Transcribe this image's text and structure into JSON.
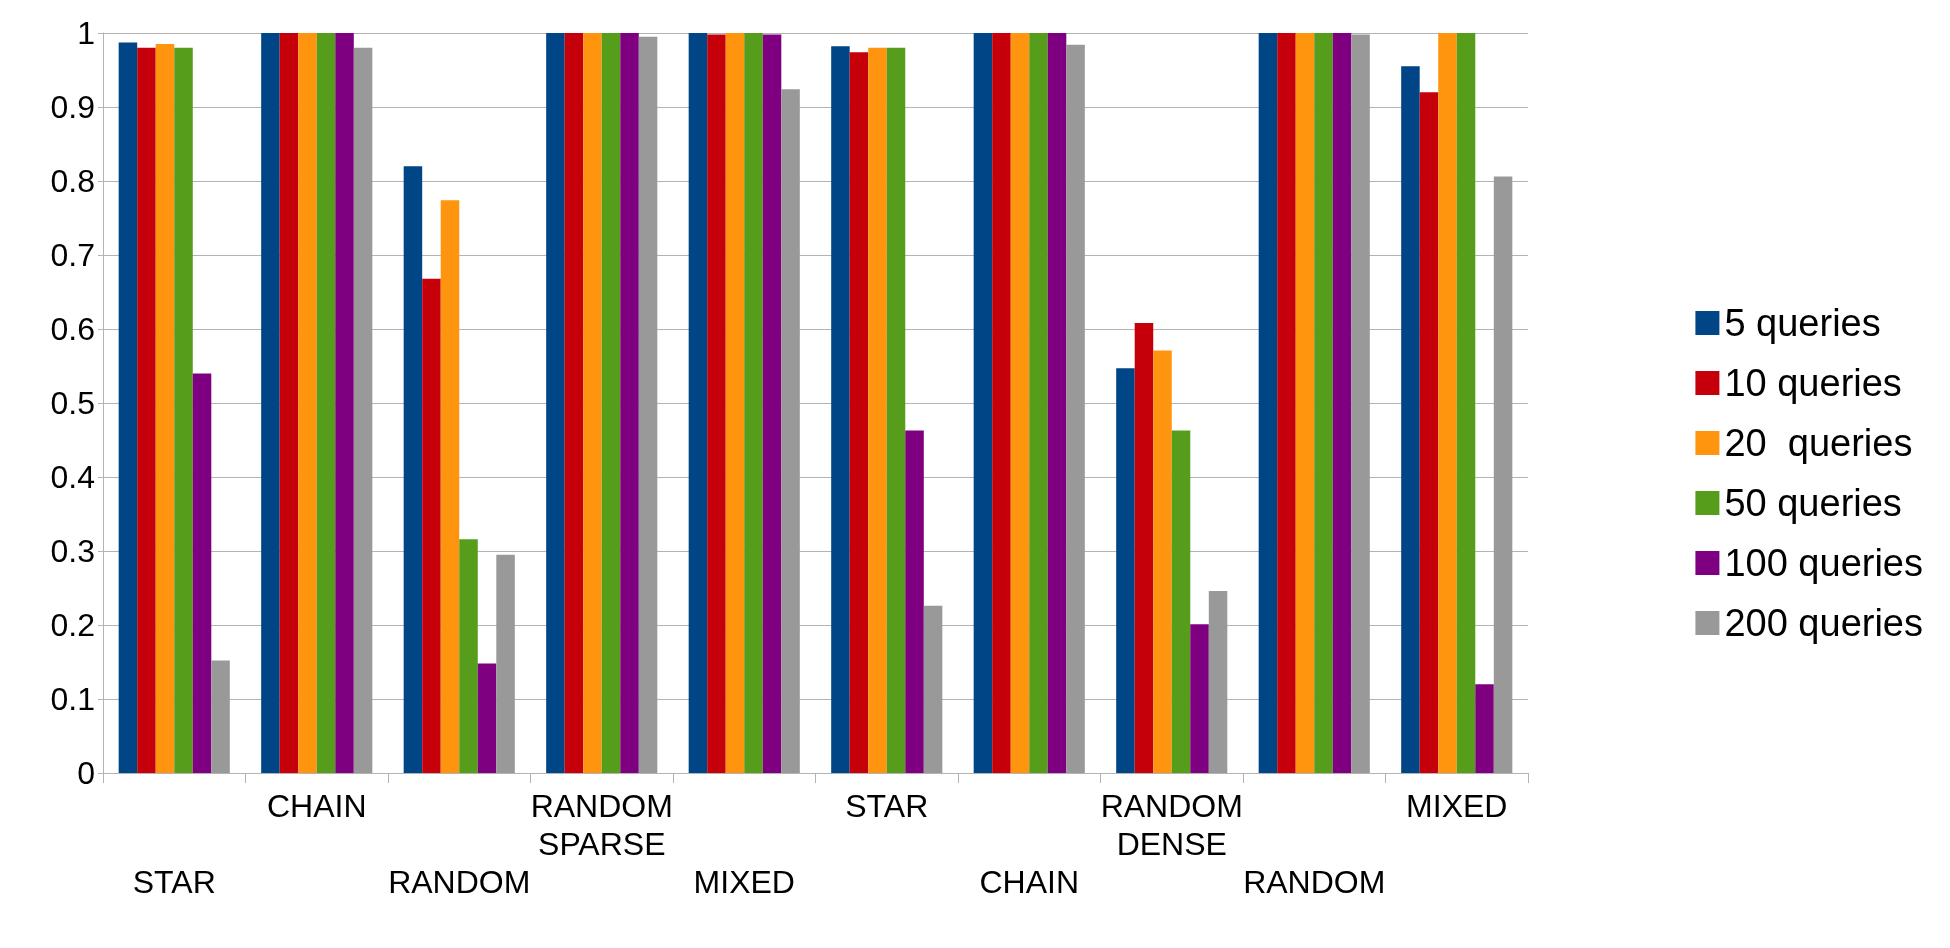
{
  "chart_data": {
    "type": "bar",
    "categories": [
      "STAR",
      "CHAIN",
      "RANDOM",
      "RANDOM SPARSE",
      "MIXED",
      "STAR",
      "CHAIN",
      "RANDOM DENSE",
      "RANDOM",
      "MIXED"
    ],
    "series": [
      {
        "name": "5 queries",
        "color": "#004586",
        "values": [
          0.987,
          1,
          0.82,
          1,
          1,
          0.982,
          1,
          0.547,
          1,
          0.955
        ]
      },
      {
        "name": "10 queries",
        "color": "#c5000b",
        "values": [
          0.98,
          1,
          0.668,
          1,
          0.998,
          0.974,
          1,
          0.608,
          1,
          0.92
        ]
      },
      {
        "name": "20  queries",
        "color": "#ff950e",
        "values": [
          0.985,
          1,
          0.774,
          1,
          1,
          0.98,
          1,
          0.571,
          1,
          1
        ]
      },
      {
        "name": "50 queries",
        "color": "#579d1c",
        "values": [
          0.98,
          1,
          0.316,
          1,
          1,
          0.98,
          1,
          0.463,
          1,
          1
        ]
      },
      {
        "name": "100 queries",
        "color": "#7e0081",
        "values": [
          0.54,
          1,
          0.148,
          1,
          0.998,
          0.463,
          1,
          0.201,
          1,
          0.12
        ]
      },
      {
        "name": "200 queries",
        "color": "#999999",
        "values": [
          0.152,
          0.98,
          0.295,
          0.995,
          0.924,
          0.226,
          0.984,
          0.246,
          0.998,
          0.806
        ]
      }
    ],
    "ylim": [
      0,
      1
    ],
    "yticks": [
      0,
      0.1,
      0.2,
      0.3,
      0.4,
      0.5,
      0.6,
      0.7,
      0.8,
      0.9,
      1
    ],
    "grid": "y",
    "legend": "right"
  }
}
